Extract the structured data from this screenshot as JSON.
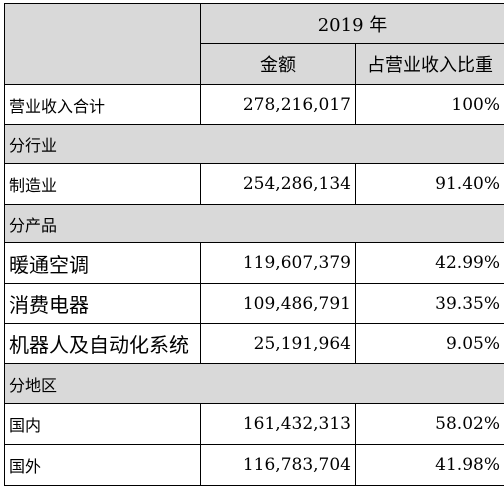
{
  "header": {
    "year": "2019 年",
    "col_amount": "金额",
    "col_ratio": "占营业收入比重"
  },
  "total": {
    "label": "营业收入合计",
    "amount": "278,216,017",
    "ratio": "100%"
  },
  "by_industry": {
    "section": "分行业",
    "rows": [
      {
        "label": "制造业",
        "amount": "254,286,134",
        "ratio": "91.40%"
      }
    ]
  },
  "by_product": {
    "section": "分产品",
    "rows": [
      {
        "label": "暖通空调",
        "amount": "119,607,379",
        "ratio": "42.99%"
      },
      {
        "label": "消费电器",
        "amount": "109,486,791",
        "ratio": "39.35%"
      },
      {
        "label": "机器人及自动化系统",
        "amount": "25,191,964",
        "ratio": "9.05%"
      }
    ]
  },
  "by_region": {
    "section": "分地区",
    "rows": [
      {
        "label": "国内",
        "amount": "161,432,313",
        "ratio": "58.02%"
      },
      {
        "label": "国外",
        "amount": "116,783,704",
        "ratio": "41.98%"
      }
    ]
  }
}
